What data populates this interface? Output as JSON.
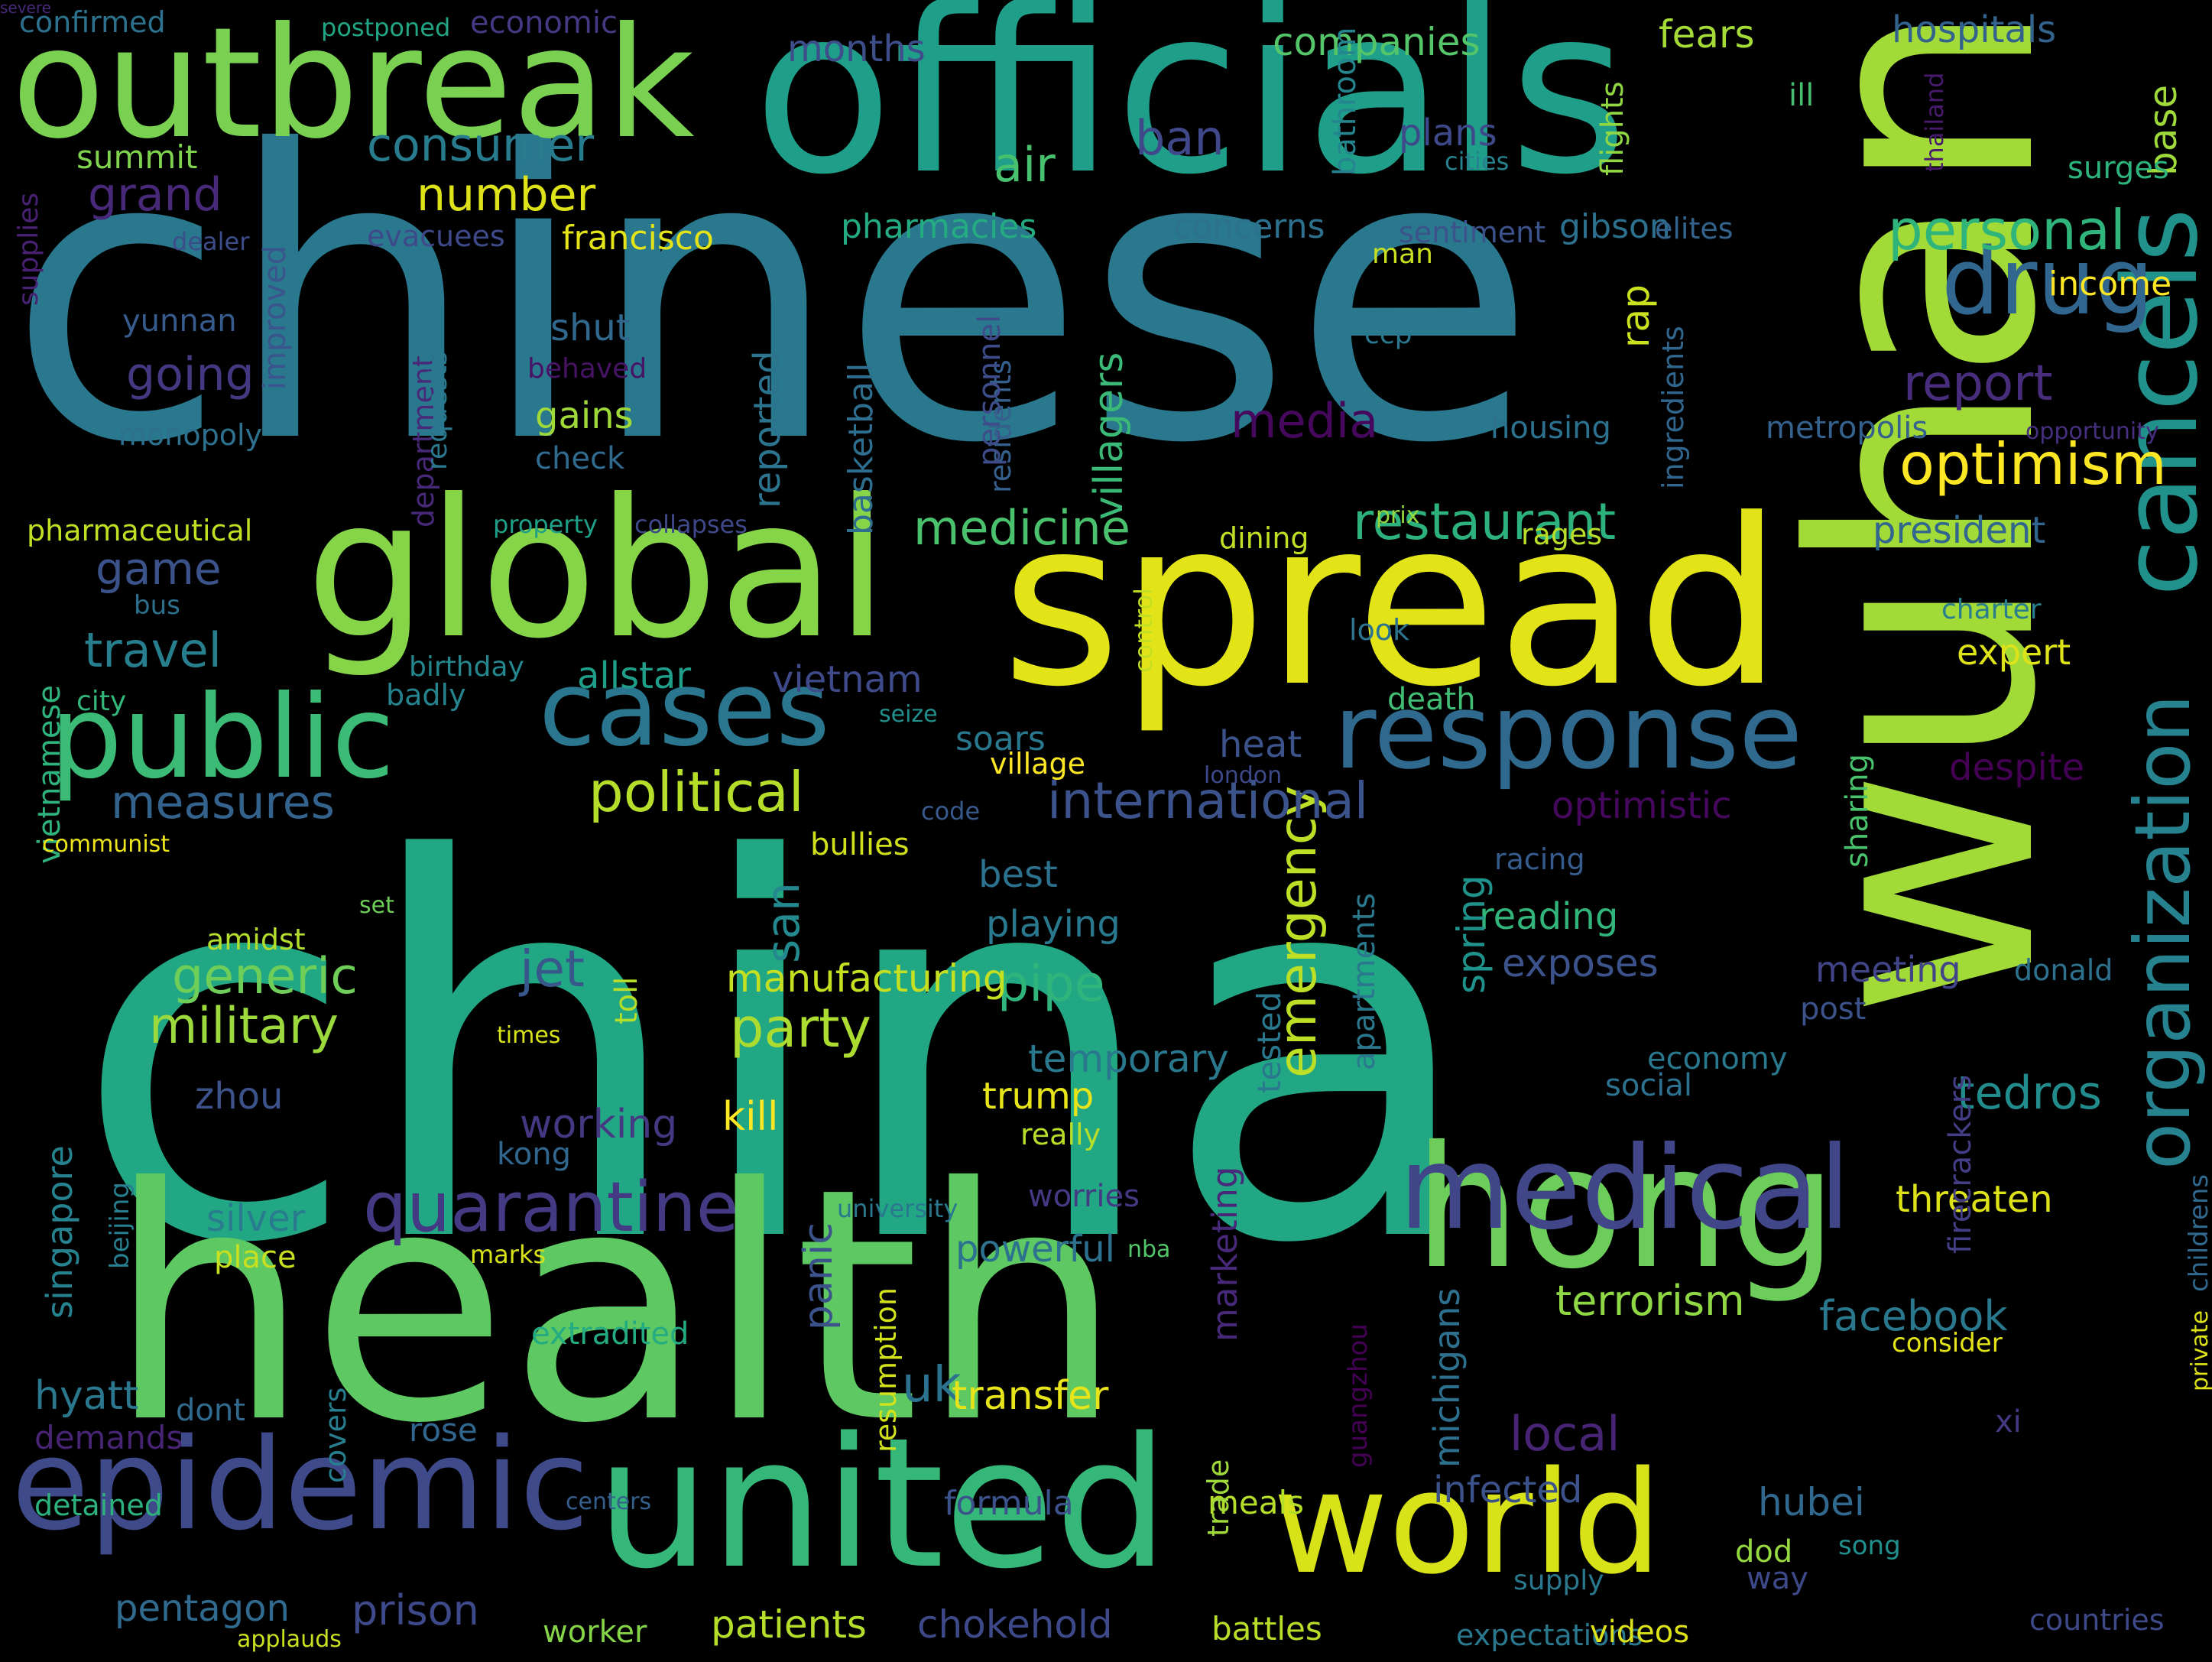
{
  "palette": {
    "background": "#000000"
  },
  "words": [
    {
      "text": "china",
      "color": "#22a785"
    },
    {
      "text": "chinese",
      "color": "#2a788e"
    },
    {
      "text": "health",
      "color": "#5ec962"
    },
    {
      "text": "wuhan",
      "color": "#a2da37"
    },
    {
      "text": "officials",
      "color": "#1f9e89"
    },
    {
      "text": "spread",
      "color": "#e2e418"
    },
    {
      "text": "outbreak",
      "color": "#7ad151"
    },
    {
      "text": "global",
      "color": "#86d549"
    },
    {
      "text": "united",
      "color": "#35b779"
    },
    {
      "text": "world",
      "color": "#d8e219"
    },
    {
      "text": "epidemic",
      "color": "#3e4a89"
    },
    {
      "text": "hong",
      "color": "#6ccd5a"
    },
    {
      "text": "medical",
      "color": "#404688"
    },
    {
      "text": "response",
      "color": "#30698e"
    },
    {
      "text": "public",
      "color": "#3bbb75"
    },
    {
      "text": "cases",
      "color": "#2a768e"
    },
    {
      "text": "cancels",
      "color": "#21918c"
    },
    {
      "text": "drug",
      "color": "#31668e"
    },
    {
      "text": "quarantine",
      "color": "#443a83"
    },
    {
      "text": "organization",
      "color": "#26828e"
    },
    {
      "text": "emergency",
      "color": "#bddf26"
    },
    {
      "text": "political",
      "color": "#b5de2b"
    },
    {
      "text": "international",
      "color": "#3b528b"
    },
    {
      "text": "personal",
      "color": "#2fb47c"
    },
    {
      "text": "restaurant",
      "color": "#2db27d"
    },
    {
      "text": "consumer",
      "color": "#287c8e"
    },
    {
      "text": "optimism",
      "color": "#fde725"
    },
    {
      "text": "medicine",
      "color": "#4ac16d"
    },
    {
      "text": "military",
      "color": "#9bd93c"
    },
    {
      "text": "generic",
      "color": "#6ece58"
    },
    {
      "text": "party",
      "color": "#addc30"
    },
    {
      "text": "report",
      "color": "#472d7b"
    },
    {
      "text": "media",
      "color": "#46085c"
    },
    {
      "text": "local",
      "color": "#482475"
    },
    {
      "text": "measures",
      "color": "#33638d"
    },
    {
      "text": "travel",
      "color": "#277f8e"
    },
    {
      "text": "going",
      "color": "#453781"
    },
    {
      "text": "grand",
      "color": "#482878"
    },
    {
      "text": "number",
      "color": "#dde318"
    },
    {
      "text": "air",
      "color": "#48c16e"
    },
    {
      "text": "ban",
      "color": "#3f4889"
    },
    {
      "text": "game",
      "color": "#3b528b"
    },
    {
      "text": "jet",
      "color": "#38588c"
    },
    {
      "text": "pipe",
      "color": "#2fb47c"
    },
    {
      "text": "uk",
      "color": "#2c728e"
    },
    {
      "text": "san",
      "color": "#23898e"
    },
    {
      "text": "tedros",
      "color": "#228c8d"
    },
    {
      "text": "base",
      "color": "#9fda3a"
    },
    {
      "text": "companies",
      "color": "#54c568"
    },
    {
      "text": "months",
      "color": "#3d4e8a"
    },
    {
      "text": "fears",
      "color": "#a5db36"
    },
    {
      "text": "hospitals",
      "color": "#33638d"
    },
    {
      "text": "confirmed",
      "color": "#2c728e"
    },
    {
      "text": "postponed",
      "color": "#21a685"
    },
    {
      "text": "economic",
      "color": "#443983"
    },
    {
      "text": "summit",
      "color": "#7fd34e"
    },
    {
      "text": "improved",
      "color": "#3a548c"
    },
    {
      "text": "plans",
      "color": "#3e4989"
    },
    {
      "text": "francisco",
      "color": "#e5e419"
    },
    {
      "text": "pharmacies",
      "color": "#25ab82"
    },
    {
      "text": "concerns",
      "color": "#2c718e"
    },
    {
      "text": "sentiment",
      "color": "#3b528b"
    },
    {
      "text": "gibson",
      "color": "#2d708e"
    },
    {
      "text": "elites",
      "color": "#33638d"
    },
    {
      "text": "income",
      "color": "#fde725"
    },
    {
      "text": "surges",
      "color": "#2eb37c"
    },
    {
      "text": "ill",
      "color": "#44bf70"
    },
    {
      "text": "flights",
      "color": "#90d743"
    },
    {
      "text": "bathroom",
      "color": "#25858e"
    },
    {
      "text": "cities",
      "color": "#26828e"
    },
    {
      "text": "thailand",
      "color": "#481a6c"
    },
    {
      "text": "supplies",
      "color": "#482173"
    },
    {
      "text": "dealer",
      "color": "#3d4d8a"
    },
    {
      "text": "evacuees",
      "color": "#3e4989"
    },
    {
      "text": "yunnan",
      "color": "#375b8d"
    },
    {
      "text": "shut",
      "color": "#31688e"
    },
    {
      "text": "behaved",
      "color": "#471365"
    },
    {
      "text": "monopoly",
      "color": "#2d718e"
    },
    {
      "text": "gains",
      "color": "#a0da39"
    },
    {
      "text": "check",
      "color": "#306a8e"
    },
    {
      "text": "reported",
      "color": "#2c738e"
    },
    {
      "text": "basketball",
      "color": "#2e6e8e"
    },
    {
      "text": "villagers",
      "color": "#3aba76"
    },
    {
      "text": "department",
      "color": "#482979"
    },
    {
      "text": "requests",
      "color": "#2a788e"
    },
    {
      "text": "ccp",
      "color": "#2a778e"
    },
    {
      "text": "man",
      "color": "#c8e020"
    },
    {
      "text": "rap",
      "color": "#cae11f"
    },
    {
      "text": "ingredients",
      "color": "#31678e"
    },
    {
      "text": "residents",
      "color": "#355f8d"
    },
    {
      "text": "personnel",
      "color": "#3e4c8a"
    },
    {
      "text": "housing",
      "color": "#2c718e"
    },
    {
      "text": "metropolis",
      "color": "#34618d"
    },
    {
      "text": "opportunity",
      "color": "#462f7e"
    },
    {
      "text": "prix",
      "color": "#95d840"
    },
    {
      "text": "pharmaceutical",
      "color": "#c2df23"
    },
    {
      "text": "property",
      "color": "#1fa088"
    },
    {
      "text": "collapses",
      "color": "#3f4889"
    },
    {
      "text": "dining",
      "color": "#c0df25"
    },
    {
      "text": "rages",
      "color": "#b8de29"
    },
    {
      "text": "president",
      "color": "#31668e"
    },
    {
      "text": "bus",
      "color": "#2d708e"
    },
    {
      "text": "charter",
      "color": "#287d8e"
    },
    {
      "text": "look",
      "color": "#2c738e"
    },
    {
      "text": "control",
      "color": "#c2df23"
    },
    {
      "text": "vietnamese",
      "color": "#2eb37c"
    },
    {
      "text": "birthday",
      "color": "#24878e"
    },
    {
      "text": "allstar",
      "color": "#1f9e89"
    },
    {
      "text": "vietnam",
      "color": "#3e4a89"
    },
    {
      "text": "expert",
      "color": "#dde318"
    },
    {
      "text": "badly",
      "color": "#25838e"
    },
    {
      "text": "city",
      "color": "#32b67a"
    },
    {
      "text": "death",
      "color": "#40bd72"
    },
    {
      "text": "seize",
      "color": "#21908d"
    },
    {
      "text": "soars",
      "color": "#2a788e"
    },
    {
      "text": "heat",
      "color": "#3b528b"
    },
    {
      "text": "village",
      "color": "#fde725"
    },
    {
      "text": "despite",
      "color": "#440154"
    },
    {
      "text": "london",
      "color": "#3e4989"
    },
    {
      "text": "optimistic",
      "color": "#46085c"
    },
    {
      "text": "code",
      "color": "#38598c"
    },
    {
      "text": "bullies",
      "color": "#d0e11c"
    },
    {
      "text": "communist",
      "color": "#ece51b"
    },
    {
      "text": "racing",
      "color": "#365c8d"
    },
    {
      "text": "sharing",
      "color": "#4ac16d"
    },
    {
      "text": "best",
      "color": "#2c718e"
    },
    {
      "text": "playing",
      "color": "#29798e"
    },
    {
      "text": "reading",
      "color": "#31b57b"
    },
    {
      "text": "set",
      "color": "#6ece58"
    },
    {
      "text": "amidst",
      "color": "#b2dd2d"
    },
    {
      "text": "exposes",
      "color": "#3b528b"
    },
    {
      "text": "spring",
      "color": "#20928c"
    },
    {
      "text": "singapore",
      "color": "#26828e"
    },
    {
      "text": "manufacturing",
      "color": "#c5e021"
    },
    {
      "text": "meeting",
      "color": "#414487"
    },
    {
      "text": "donald",
      "color": "#2d718e"
    },
    {
      "text": "post",
      "color": "#3b528b"
    },
    {
      "text": "toll",
      "color": "#b5de2b"
    },
    {
      "text": "times",
      "color": "#d8e219"
    },
    {
      "text": "tested",
      "color": "#2a788e"
    },
    {
      "text": "apartments",
      "color": "#2a788e"
    },
    {
      "text": "temporary",
      "color": "#2a788e"
    },
    {
      "text": "trump",
      "color": "#e7e419"
    },
    {
      "text": "economy",
      "color": "#2a788e"
    },
    {
      "text": "zhou",
      "color": "#3b528b"
    },
    {
      "text": "working",
      "color": "#453781"
    },
    {
      "text": "kill",
      "color": "#fde725"
    },
    {
      "text": "really",
      "color": "#b8de29"
    },
    {
      "text": "social",
      "color": "#2c718e"
    },
    {
      "text": "kong",
      "color": "#31678e"
    },
    {
      "text": "beijing",
      "color": "#277e8e"
    },
    {
      "text": "university",
      "color": "#2a788e"
    },
    {
      "text": "worries",
      "color": "#443983"
    },
    {
      "text": "threaten",
      "color": "#dde318"
    },
    {
      "text": "silver",
      "color": "#287c8e"
    },
    {
      "text": "place",
      "color": "#c8e020"
    },
    {
      "text": "marks",
      "color": "#d8e219"
    },
    {
      "text": "powerful",
      "color": "#2c728e"
    },
    {
      "text": "nba",
      "color": "#52c569"
    },
    {
      "text": "panic",
      "color": "#3b528b"
    },
    {
      "text": "marketing",
      "color": "#482979"
    },
    {
      "text": "childrens",
      "color": "#31688e"
    },
    {
      "text": "firecrackers",
      "color": "#433e85"
    },
    {
      "text": "private",
      "color": "#dde318"
    },
    {
      "text": "terrorism",
      "color": "#8fd744"
    },
    {
      "text": "facebook",
      "color": "#2a788e"
    },
    {
      "text": "consider",
      "color": "#e5e419"
    },
    {
      "text": "extradited",
      "color": "#25ab82"
    },
    {
      "text": "covers",
      "color": "#277e8e"
    },
    {
      "text": "resumption",
      "color": "#d2e21b"
    },
    {
      "text": "guangzhou",
      "color": "#440154"
    },
    {
      "text": "michigans",
      "color": "#2d708e"
    },
    {
      "text": "transfer",
      "color": "#e7e419"
    },
    {
      "text": "hyatt",
      "color": "#2a778e"
    },
    {
      "text": "dont",
      "color": "#306a8e"
    },
    {
      "text": "rose",
      "color": "#31668e"
    },
    {
      "text": "demands",
      "color": "#482475"
    },
    {
      "text": "xi",
      "color": "#443983"
    },
    {
      "text": "detained",
      "color": "#2db27d"
    },
    {
      "text": "centers",
      "color": "#355f8d"
    },
    {
      "text": "formula",
      "color": "#3b528b"
    },
    {
      "text": "meals",
      "color": "#b5de2b"
    },
    {
      "text": "trade",
      "color": "#9fda3a"
    },
    {
      "text": "infected",
      "color": "#3b528b"
    },
    {
      "text": "hubei",
      "color": "#31688e"
    },
    {
      "text": "song",
      "color": "#21908d"
    },
    {
      "text": "dod",
      "color": "#95d840"
    },
    {
      "text": "supply",
      "color": "#2a788e"
    },
    {
      "text": "way",
      "color": "#3e4989"
    },
    {
      "text": "pentagon",
      "color": "#306a8e"
    },
    {
      "text": "applauds",
      "color": "#c8e020"
    },
    {
      "text": "prison",
      "color": "#3e4989"
    },
    {
      "text": "worker",
      "color": "#86d549"
    },
    {
      "text": "patients",
      "color": "#b5de2b"
    },
    {
      "text": "chokehold",
      "color": "#3e4989"
    },
    {
      "text": "battles",
      "color": "#b8de29"
    },
    {
      "text": "expectations",
      "color": "#2a788e"
    },
    {
      "text": "videos",
      "color": "#dde318"
    },
    {
      "text": "countries",
      "color": "#3e4989"
    },
    {
      "text": "severe",
      "color": "#482979"
    }
  ]
}
